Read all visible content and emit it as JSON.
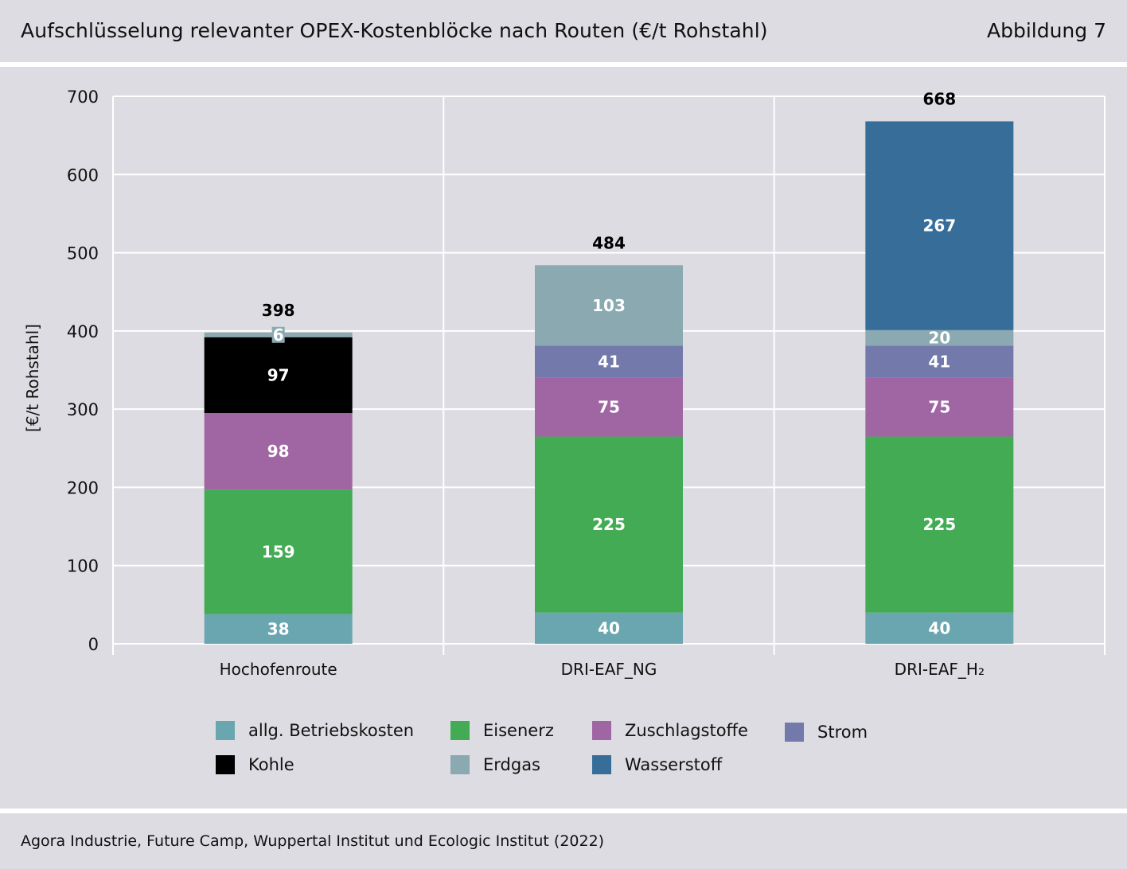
{
  "header": {
    "title": "Aufschlüsselung relevanter OPEX-Kostenblöcke nach Routen (€/t Rohstahl)",
    "figure_label": "Abbildung 7"
  },
  "source": "Agora Industrie, Future Camp, Wuppertal Institut und Ecologic Institut (2022)",
  "chart_data": {
    "type": "bar",
    "stacked": true,
    "title": "Aufschlüsselung relevanter OPEX-Kostenblöcke nach Routen (€/t Rohstahl)",
    "ylabel": "[€/t Rohstahl]",
    "xlabel": "",
    "ylim": [
      0,
      700
    ],
    "yticks": [
      0,
      100,
      200,
      300,
      400,
      500,
      600,
      700
    ],
    "grid": true,
    "legend_position": "bottom",
    "categories": [
      "Hochofenroute",
      "DRI-EAF_NG",
      "DRI-EAF_H₂"
    ],
    "totals": [
      "398",
      "484",
      "668"
    ],
    "series": [
      {
        "name": "allg. Betriebskosten",
        "color": "#6aa6b0",
        "values": [
          38,
          40,
          40
        ]
      },
      {
        "name": "Eisenerz",
        "color": "#42ab54",
        "values": [
          159,
          225,
          225
        ]
      },
      {
        "name": "Zuschlagstoffe",
        "color": "#a066a4",
        "values": [
          98,
          75,
          75
        ]
      },
      {
        "name": "Strom",
        "color": "#7479ac",
        "values": [
          0,
          41,
          41
        ]
      },
      {
        "name": "Kohle",
        "color": "#000000",
        "values": [
          97,
          0,
          0
        ]
      },
      {
        "name": "Erdgas",
        "color": "#8aa9b1",
        "values": [
          6,
          103,
          20
        ]
      },
      {
        "name": "Wasserstoff",
        "color": "#376d99",
        "values": [
          0,
          0,
          267
        ]
      }
    ]
  }
}
